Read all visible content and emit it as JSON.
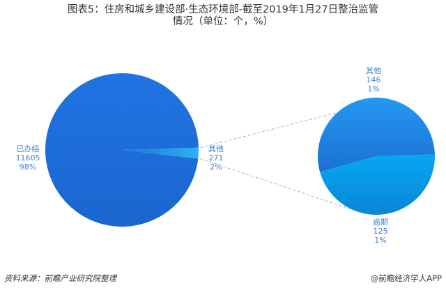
{
  "chart_data": {
    "type": "pie",
    "title": "图表5：住房和城乡建设部·生态环境部-截至2019年1月27日整治监管情况（单位：个，%）",
    "main_pie": {
      "slices": [
        {
          "label": "已办结",
          "value": 11605,
          "percent": "98%",
          "color": "#1e6fdc"
        },
        {
          "label": "其他",
          "value": 271,
          "percent": "2%",
          "color": "#2ba9f0"
        }
      ]
    },
    "secondary_pie": {
      "breakdown_of": "其他",
      "slices": [
        {
          "label": "其他",
          "value": 146,
          "percent": "1%",
          "color": "#1f88e8"
        },
        {
          "label": "逾期",
          "value": 125,
          "percent": "1%",
          "color": "#07a2ee"
        }
      ]
    }
  },
  "footer": {
    "source": "资料来源：前瞻产业研究院整理",
    "brand": "@前瞻经济学人APP"
  }
}
